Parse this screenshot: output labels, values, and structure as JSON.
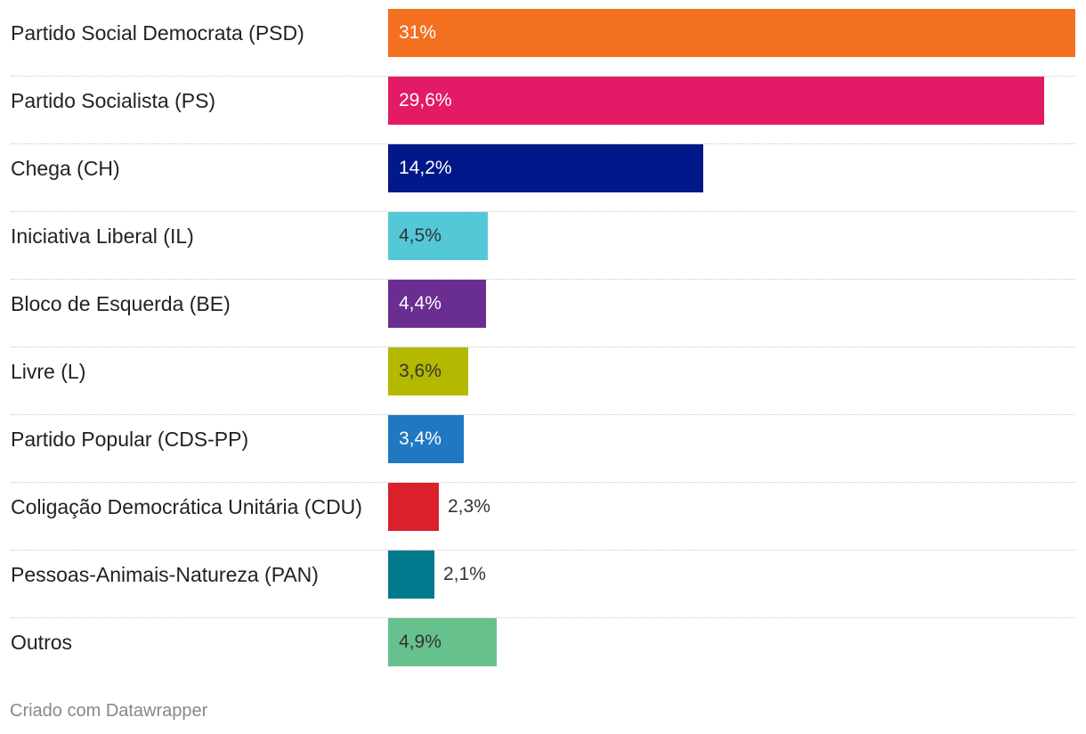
{
  "chart_data": {
    "type": "bar",
    "orientation": "horizontal",
    "title": "",
    "xlim": [
      0,
      31
    ],
    "categories": [
      "Partido Social Democrata (PSD)",
      "Partido Socialista (PS)",
      "Chega (CH)",
      "Iniciativa Liberal (IL)",
      "Bloco de Esquerda (BE)",
      "Livre (L)",
      "Partido Popular (CDS-PP)",
      "Coligação Democrática Unitária (CDU)",
      "Pessoas-Animais-Natureza (PAN)",
      "Outros"
    ],
    "values": [
      31,
      29.6,
      14.2,
      4.5,
      4.4,
      3.6,
      3.4,
      2.3,
      2.1,
      4.9
    ],
    "value_labels": [
      "31%",
      "29,6%",
      "14,2%",
      "4,5%",
      "4,4%",
      "3,6%",
      "3,4%",
      "2,3%",
      "2,1%",
      "4,9%"
    ],
    "colors": [
      "#f37021",
      "#e31a66",
      "#00188a",
      "#55c8d8",
      "#6a2d91",
      "#b3b800",
      "#1f78c1",
      "#dc1f2c",
      "#007a8c",
      "#66c18c"
    ],
    "label_colors": [
      "#ffffff",
      "#ffffff",
      "#ffffff",
      "#333333",
      "#ffffff",
      "#333333",
      "#ffffff",
      "#333333",
      "#333333",
      "#333333"
    ]
  },
  "footer": {
    "credit": "Criado com Datawrapper"
  }
}
